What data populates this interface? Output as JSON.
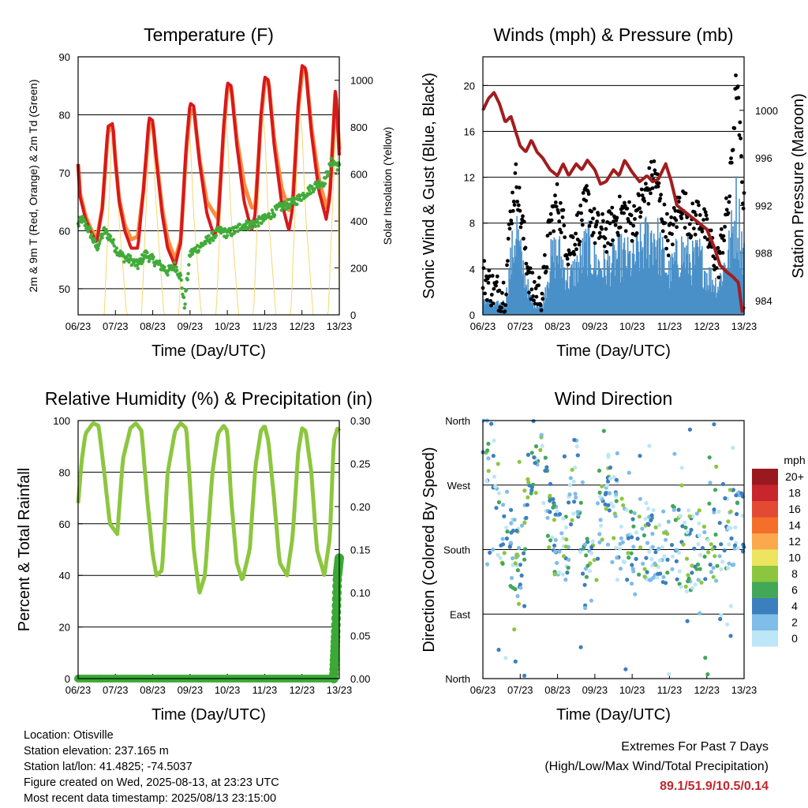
{
  "chart_data": [
    {
      "type": "line",
      "title": "Temperature (F)",
      "xlabel": "Time (Day/UTC)",
      "ylabel": "2m & 9m T (Red, Orange) & 2m Td (Green)",
      "y2label": "Solar Insolation (Yellow)",
      "x_ticks": [
        "06/23",
        "07/23",
        "08/23",
        "09/23",
        "10/23",
        "11/23",
        "12/23",
        "13/23"
      ],
      "y_ticks": [
        50,
        60,
        70,
        80,
        90
      ],
      "y2_ticks": [
        0,
        200,
        400,
        600,
        800,
        1000
      ],
      "ylim": [
        45.5,
        90
      ],
      "y2lim": [
        0,
        1100
      ],
      "grid": true,
      "series": [
        {
          "color": "#d7191c",
          "x": [
            0,
            0.05,
            0.2,
            0.33,
            0.5,
            0.65,
            0.8,
            0.93,
            1.0,
            1.1,
            1.25,
            1.42,
            1.6,
            1.75,
            1.9,
            2.0,
            2.1,
            2.25,
            2.4,
            2.6,
            2.75,
            2.9,
            3.0,
            3.1,
            3.25,
            3.45,
            3.65,
            3.75,
            3.9,
            4.0,
            4.1,
            4.25,
            4.45,
            4.65,
            4.75,
            4.9,
            5.0,
            5.1,
            5.25,
            5.45,
            5.65,
            5.75,
            5.9,
            6.0,
            6.1,
            6.25,
            6.45,
            6.65,
            6.75,
            6.9,
            7.0
          ],
          "values": [
            71.5,
            66,
            62,
            60,
            58,
            64,
            78,
            78.5,
            72,
            65,
            60,
            57,
            57,
            67,
            79.5,
            79,
            72,
            63,
            57,
            54,
            58,
            75,
            82,
            81.5,
            72,
            63,
            59,
            61,
            78,
            85.5,
            85,
            75,
            65,
            60,
            63,
            80,
            86.5,
            86,
            75,
            65,
            60,
            64,
            82,
            88.5,
            88,
            77,
            67,
            62,
            66,
            85,
            73
          ]
        },
        {
          "color": "#fd8d3c",
          "x": [
            0,
            0.05,
            0.2,
            0.33,
            0.5,
            0.65,
            0.8,
            0.93,
            1.0,
            1.1,
            1.25,
            1.42,
            1.6,
            1.75,
            1.9,
            2.0,
            2.1,
            2.25,
            2.4,
            2.6,
            2.75,
            2.9,
            3.0,
            3.1,
            3.25,
            3.45,
            3.65,
            3.75,
            3.9,
            4.0,
            4.1,
            4.25,
            4.45,
            4.65,
            4.75,
            4.9,
            5.0,
            5.1,
            5.25,
            5.45,
            5.65,
            5.75,
            5.9,
            6.0,
            6.1,
            6.25,
            6.45,
            6.65,
            6.75,
            6.9,
            7.0
          ],
          "values": [
            71.5,
            66.5,
            62.5,
            60.5,
            58.5,
            64,
            77,
            78,
            72,
            65.5,
            61,
            58.5,
            59,
            67,
            78,
            78.5,
            72.5,
            64,
            58.5,
            55,
            58.5,
            74,
            80.5,
            81,
            72.5,
            65,
            63,
            62,
            77,
            84.5,
            85,
            76,
            68,
            64,
            64,
            79,
            85.5,
            86,
            76,
            67.5,
            63.5,
            65,
            81,
            87,
            88,
            78,
            69,
            64,
            66.5,
            84.5,
            74
          ]
        },
        {
          "color": "#41ab3a",
          "x": [
            0,
            0.1,
            0.3,
            0.5,
            0.7,
            0.9,
            1.0,
            1.2,
            1.4,
            1.6,
            1.8,
            2.0,
            2.2,
            2.4,
            2.6,
            2.75,
            2.85,
            3.0,
            3.2,
            3.4,
            3.6,
            3.8,
            4.0,
            4.2,
            4.4,
            4.6,
            4.8,
            5.0,
            5.2,
            5.4,
            5.6,
            5.8,
            6.0,
            6.2,
            6.4,
            6.6,
            6.8,
            7.0
          ],
          "values": [
            61,
            62,
            60,
            57,
            60,
            58.5,
            57,
            55.5,
            55,
            54,
            56,
            55,
            54,
            53,
            54,
            52,
            47,
            56,
            57,
            58,
            59,
            60,
            59.5,
            60,
            61,
            61,
            61.5,
            62,
            63,
            64,
            64.5,
            65,
            66,
            67,
            68,
            68.5,
            72,
            71
          ]
        },
        {
          "color": "#f5d76e",
          "x": [
            0,
            0.3,
            0.5,
            0.7,
            0.93,
            1.0,
            1.1,
            1.3,
            1.5,
            1.7,
            1.93,
            2.0,
            2.1,
            2.3,
            2.5,
            2.7,
            2.93,
            3.0,
            3.1,
            3.3,
            3.5,
            3.7,
            3.93,
            4.0,
            4.1,
            4.3,
            4.5,
            4.7,
            4.93,
            5.0,
            5.1,
            5.3,
            5.5,
            5.7,
            5.93,
            6.0,
            6.1,
            6.3,
            6.5,
            6.7,
            6.93,
            7.0
          ],
          "values": [
            0,
            0,
            0,
            0,
            850,
            700,
            400,
            0,
            0,
            0,
            850,
            750,
            450,
            0,
            0,
            0,
            860,
            760,
            420,
            0,
            0,
            0,
            860,
            770,
            420,
            0,
            0,
            0,
            870,
            780,
            420,
            0,
            0,
            0,
            880,
            790,
            420,
            0,
            0,
            0,
            890,
            100
          ]
        }
      ]
    },
    {
      "type": "line",
      "title": "Winds (mph) & Pressure (mb)",
      "xlabel": "Time (Day/UTC)",
      "ylabel": "Sonic Wind & Gust (Blue, Black)",
      "y2label": "Station Pressure (Maroon)",
      "x_ticks": [
        "06/23",
        "07/23",
        "08/23",
        "09/23",
        "10/23",
        "11/23",
        "12/23",
        "13/23"
      ],
      "y_ticks": [
        0,
        4,
        8,
        12,
        16,
        20
      ],
      "y2_ticks": [
        984,
        988,
        992,
        996,
        1000
      ],
      "ylim": [
        0,
        22.5
      ],
      "y2lim": [
        982.8,
        1004.5
      ],
      "grid": true,
      "series": [
        {
          "color": "#4a90c8",
          "x": [
            0,
            0.3,
            0.6,
            0.75,
            0.9,
            1.0,
            1.3,
            1.6,
            1.8,
            2.0,
            2.3,
            2.6,
            2.8,
            3.0,
            3.3,
            3.6,
            3.8,
            4.0,
            4.3,
            4.6,
            4.8,
            5.0,
            5.3,
            5.6,
            5.8,
            6.0,
            6.3,
            6.6,
            6.8,
            7.0
          ],
          "values": [
            1.5,
            0.8,
            1.0,
            4.5,
            7.5,
            5.0,
            1.0,
            0.8,
            4.5,
            5.5,
            3.0,
            4.5,
            6.0,
            4.5,
            4.0,
            5.0,
            5.0,
            4.5,
            6.0,
            7.0,
            5.0,
            3.5,
            5.5,
            4.5,
            5.0,
            3.5,
            2.5,
            5.5,
            9.0,
            5.0
          ]
        },
        {
          "color": "#000000",
          "x": [
            0,
            0.3,
            0.6,
            0.75,
            0.9,
            1.0,
            1.3,
            1.6,
            1.8,
            2.0,
            2.3,
            2.6,
            2.8,
            3.0,
            3.3,
            3.6,
            3.8,
            4.0,
            4.3,
            4.6,
            4.8,
            5.0,
            5.3,
            5.6,
            5.8,
            6.0,
            6.3,
            6.6,
            6.8,
            7.0
          ],
          "values": [
            3.5,
            2.0,
            2.0,
            9.0,
            12.0,
            9.0,
            2.0,
            2.0,
            8.0,
            10.0,
            5.5,
            8.0,
            10.0,
            7.5,
            7.0,
            8.5,
            9.0,
            8.0,
            10.0,
            12.5,
            9.0,
            6.5,
            10.0,
            8.0,
            9.0,
            7.0,
            4.5,
            10.0,
            20.5,
            9.0
          ]
        },
        {
          "color": "#a11d1f",
          "x": [
            0,
            0.15,
            0.3,
            0.45,
            0.6,
            0.75,
            0.85,
            1.0,
            1.15,
            1.3,
            1.45,
            1.6,
            1.8,
            2.0,
            2.15,
            2.3,
            2.5,
            2.65,
            2.8,
            3.0,
            3.15,
            3.3,
            3.5,
            3.65,
            3.8,
            4.0,
            4.2,
            4.4,
            4.55,
            4.7,
            4.9,
            5.05,
            5.2,
            5.4,
            5.6,
            5.8,
            6.0,
            6.2,
            6.35,
            6.5,
            6.7,
            6.85,
            6.95,
            7.0
          ],
          "values": [
            1000.0,
            1001.0,
            1001.5,
            1000.5,
            999.0,
            999.5,
            998.5,
            997.0,
            996.5,
            997.5,
            996.5,
            996.0,
            995.0,
            994.5,
            995.5,
            994.5,
            995.5,
            995.0,
            995.8,
            995.0,
            993.8,
            994.0,
            995.0,
            994.5,
            995.8,
            994.8,
            994.0,
            994.5,
            994.0,
            994.2,
            995.5,
            994.0,
            992.0,
            991.5,
            991.0,
            990.5,
            990.0,
            988.5,
            987.0,
            986.5,
            986.0,
            985.5,
            983.0,
            983.5
          ]
        }
      ]
    },
    {
      "type": "scatter",
      "title": "Relative Humidity (%) & Precipitation (in)",
      "xlabel": "Time (Day/UTC)",
      "ylabel": "Percent & Total Rainfall",
      "x_ticks": [
        "06/23",
        "07/23",
        "08/23",
        "09/23",
        "10/23",
        "11/23",
        "12/23",
        "13/23"
      ],
      "y_ticks": [
        0,
        20,
        40,
        60,
        80,
        100
      ],
      "y2_ticks": [
        "0.00",
        "0.05",
        "0.10",
        "0.15",
        "0.20",
        "0.25",
        "0.30"
      ],
      "ylim": [
        0,
        100
      ],
      "y2lim": [
        0,
        0.3
      ],
      "grid": true,
      "series": [
        {
          "color": "#8dc63f",
          "x": [
            0,
            0.1,
            0.2,
            0.4,
            0.55,
            0.7,
            0.85,
            0.95,
            1.05,
            1.2,
            1.4,
            1.55,
            1.7,
            1.85,
            2.0,
            2.1,
            2.25,
            2.4,
            2.6,
            2.75,
            2.9,
            3.0,
            3.1,
            3.25,
            3.4,
            3.6,
            3.75,
            3.9,
            4.0,
            4.1,
            4.25,
            4.4,
            4.6,
            4.75,
            4.9,
            5.0,
            5.1,
            5.25,
            5.4,
            5.6,
            5.75,
            5.9,
            6.0,
            6.1,
            6.25,
            6.4,
            6.6,
            6.75,
            6.85,
            6.95,
            7.0
          ],
          "values": [
            68,
            85,
            95,
            99,
            98,
            80,
            60,
            58,
            56,
            85,
            97,
            99,
            96,
            70,
            48,
            40,
            42,
            80,
            96,
            99,
            97,
            75,
            50,
            33,
            40,
            80,
            95,
            98,
            96,
            70,
            45,
            38,
            50,
            82,
            96,
            98,
            92,
            70,
            45,
            40,
            55,
            88,
            97,
            96,
            80,
            50,
            40,
            55,
            92,
            97,
            96
          ]
        },
        {
          "color": "#3aa935",
          "x": [
            0,
            1,
            2,
            3,
            4,
            5,
            6,
            6.85,
            6.9,
            6.95,
            7.0
          ],
          "values": [
            0,
            0,
            0,
            0,
            0,
            0,
            0,
            0,
            0.05,
            0.12,
            0.14
          ]
        }
      ]
    },
    {
      "type": "scatter",
      "title": "Wind Direction",
      "xlabel": "Time (Day/UTC)",
      "ylabel": "Direction (Colored By Speed)",
      "x_ticks": [
        "06/23",
        "07/23",
        "08/23",
        "09/23",
        "10/23",
        "11/23",
        "12/23",
        "13/23"
      ],
      "y_ticks": [
        "North",
        "East",
        "South",
        "West",
        "North"
      ],
      "ylim": [
        0,
        360
      ],
      "grid": true,
      "legend": {
        "title": "mph",
        "position": "right",
        "labels": [
          "20+",
          "18",
          "16",
          "14",
          "12",
          "10",
          "8",
          "6",
          "4",
          "2",
          "0"
        ],
        "colors": [
          "#99191f",
          "#c7262c",
          "#e24a33",
          "#f36f2a",
          "#fba94c",
          "#ede560",
          "#8cc63f",
          "#42a857",
          "#3c7fbe",
          "#80bde8",
          "#bde6f6"
        ]
      },
      "series": [
        {
          "x": [
            0.1,
            0.3,
            0.5,
            0.8,
            1.0,
            1.3,
            1.6,
            1.9,
            2.2,
            2.5,
            2.7,
            3.0,
            3.3,
            3.6,
            3.9,
            4.2,
            4.5,
            4.8,
            5.1,
            5.4,
            5.7,
            6.0,
            6.3,
            6.6,
            6.9
          ],
          "values": [
            320,
            300,
            200,
            180,
            150,
            310,
            300,
            190,
            170,
            310,
            140,
            160,
            290,
            220,
            180,
            200,
            190,
            180,
            200,
            170,
            180,
            190,
            200,
            210,
            220
          ]
        }
      ]
    }
  ],
  "footer": {
    "location": "Location: Otisville",
    "elevation": "Station elevation: 237.165 m",
    "latlon": "Station lat/lon: 41.4825; -74.5037",
    "created": "Figure created on Wed, 2025-08-13, at 23:23 UTC",
    "recent": "Most recent data timestamp: 2025/08/13 23:15:00",
    "extremes_title": "Extremes For Past 7 Days",
    "extremes_subtitle": "(High/Low/Max Wind/Total Precipitation)",
    "extremes_values": "89.1/51.9/10.5/0.14"
  }
}
